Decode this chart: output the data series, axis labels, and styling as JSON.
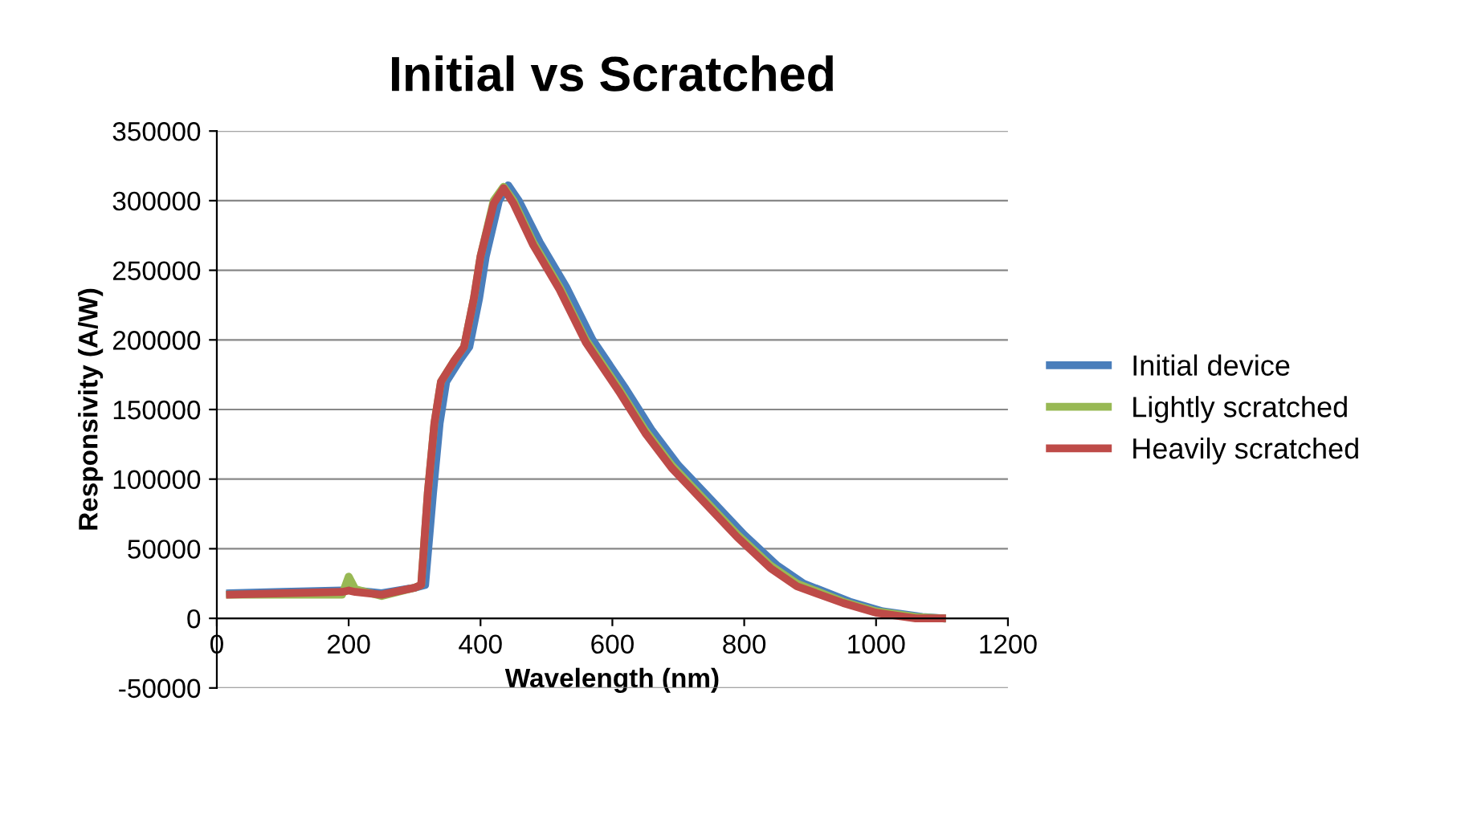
{
  "chart_data": {
    "type": "line",
    "title": "Initial vs Scratched",
    "xlabel": "Wavelength (nm)",
    "ylabel": "Responsivity (A/W)",
    "xlim": [
      0,
      1200
    ],
    "xticks": [
      0,
      200,
      400,
      600,
      800,
      1000,
      1200
    ],
    "ylim": [
      -50000,
      350000
    ],
    "yticks": [
      -50000,
      0,
      50000,
      100000,
      150000,
      200000,
      250000,
      300000,
      350000
    ],
    "grid": "y",
    "legend": "right",
    "marker": "none",
    "line_style": "solid",
    "x": [
      20,
      100,
      190,
      200,
      210,
      250,
      300,
      310,
      320,
      330,
      340,
      360,
      375,
      390,
      400,
      420,
      435,
      450,
      480,
      520,
      560,
      610,
      650,
      690,
      740,
      790,
      840,
      880,
      950,
      1000,
      1060,
      1100
    ],
    "series": [
      {
        "name": "Initial device",
        "color": "#4a7ebb",
        "x": [
          20,
          100,
          190,
          200,
          210,
          250,
          300,
          316,
          328,
          338,
          348,
          368,
          383,
          398,
          408,
          428,
          442,
          458,
          490,
          530,
          570,
          620,
          660,
          700,
          750,
          800,
          850,
          890,
          960,
          1010,
          1070,
          1100
        ],
        "values": [
          18000,
          19000,
          20000,
          21000,
          20000,
          18000,
          22000,
          24000,
          90000,
          140000,
          170000,
          185000,
          195000,
          230000,
          260000,
          300000,
          311000,
          300000,
          270000,
          238000,
          200000,
          165000,
          135000,
          110000,
          85000,
          60000,
          38000,
          25000,
          12000,
          5000,
          1000,
          0
        ]
      },
      {
        "name": "Lightly scratched",
        "color": "#98b954",
        "values": [
          17000,
          17000,
          17000,
          30000,
          21000,
          16000,
          22000,
          24000,
          90000,
          140000,
          170000,
          185000,
          195000,
          230000,
          260000,
          300000,
          310000,
          300000,
          270000,
          238000,
          200000,
          165000,
          135000,
          110000,
          85000,
          60000,
          38000,
          25000,
          12000,
          5000,
          1000,
          0
        ]
      },
      {
        "name": "Heavily scratched",
        "color": "#be4b48",
        "values": [
          17000,
          18000,
          19000,
          20000,
          19000,
          17000,
          22000,
          24000,
          90000,
          140000,
          170000,
          185000,
          195000,
          230000,
          260000,
          298000,
          309000,
          298000,
          268000,
          236000,
          198000,
          163000,
          133000,
          108000,
          83000,
          58000,
          36000,
          23000,
          11000,
          4000,
          0,
          0
        ]
      }
    ]
  }
}
